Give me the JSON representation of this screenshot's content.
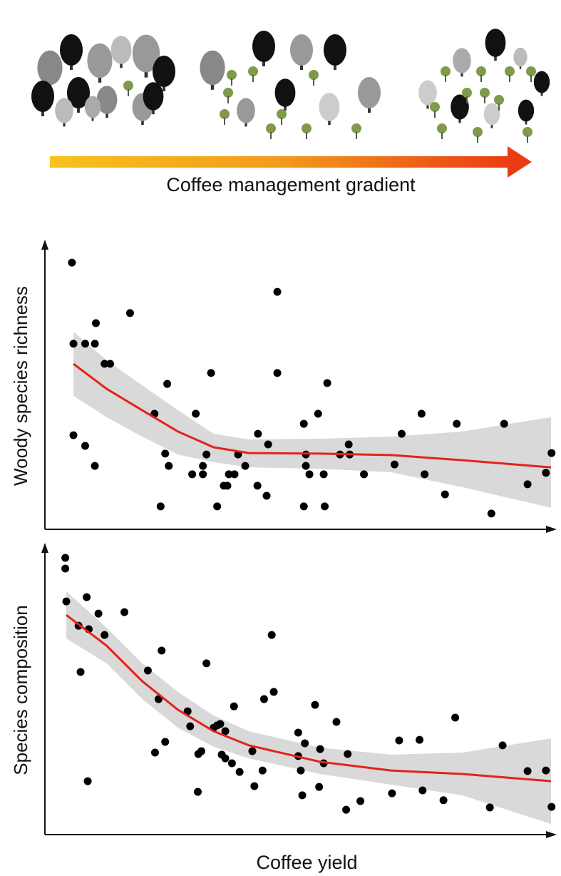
{
  "header": {
    "caption": "Coffee management gradient"
  },
  "chart_data": [
    {
      "type": "scatter",
      "ylabel": "Woody species richness",
      "xlim": [
        0,
        100
      ],
      "ylim": [
        0,
        100
      ],
      "series": [
        {
          "color": "#000000",
          "x": [
            5.3,
            5.6,
            7.9,
            9.8,
            10.0,
            11.7,
            12.8,
            16.7,
            5.6,
            7.9,
            9.8,
            21.5,
            24.0,
            23.6,
            24.3,
            22.7,
            29.6,
            32.6,
            28.9,
            31.0,
            31.0,
            31.7,
            33.8,
            35.1,
            35.8,
            36.1,
            37.2,
            37.9,
            39.3,
            41.7,
            41.8,
            43.5,
            43.8,
            45.6,
            45.6,
            50.8,
            50.8,
            51.2,
            51.2,
            51.9,
            53.6,
            54.7,
            54.9,
            55.4,
            57.9,
            59.6,
            59.8,
            62.6,
            68.6,
            70.0,
            73.9,
            74.5,
            78.5,
            80.8,
            87.6,
            90.1,
            94.7,
            98.3,
            99.4
          ],
          "values": [
            93.0,
            64.7,
            64.7,
            64.7,
            71.9,
            57.7,
            57.7,
            75.4,
            32.8,
            29.1,
            22.1,
            40.3,
            50.7,
            26.4,
            22.1,
            8.0,
            40.3,
            54.5,
            19.2,
            19.2,
            22.1,
            26.1,
            8.0,
            15.2,
            15.2,
            19.2,
            19.2,
            26.1,
            22.1,
            15.2,
            33.3,
            11.7,
            29.6,
            82.8,
            54.5,
            36.8,
            8.0,
            26.1,
            22.1,
            19.2,
            40.3,
            19.2,
            8.0,
            51.0,
            26.1,
            29.6,
            26.1,
            19.2,
            22.6,
            33.3,
            40.3,
            19.2,
            12.2,
            36.8,
            5.5,
            36.8,
            15.7,
            19.7,
            26.6
          ]
        }
      ],
      "fit": {
        "color": "#e2231a",
        "band_color": "#d9d9d9",
        "x": [
          5.6,
          12.1,
          19.1,
          26.1,
          33.1,
          40.0,
          54.0,
          67.9,
          81.9,
          99.3
        ],
        "values": [
          57.7,
          49.0,
          41.5,
          34.1,
          28.6,
          26.6,
          26.4,
          25.9,
          24.1,
          21.6
        ],
        "upper": [
          68.9,
          59.0,
          50.2,
          41.5,
          33.3,
          31.3,
          31.6,
          32.3,
          34.1,
          39.1
        ],
        "lower": [
          46.5,
          39.1,
          32.3,
          26.1,
          23.4,
          21.6,
          21.1,
          19.9,
          14.7,
          7.5
        ]
      }
    },
    {
      "type": "scatter",
      "ylabel": "Species composition",
      "xlabel": "Coffee yield",
      "xlim": [
        0,
        100
      ],
      "ylim": [
        0,
        100
      ],
      "series": [
        {
          "color": "#000000",
          "x": [
            4.0,
            4.0,
            4.2,
            8.2,
            6.6,
            8.6,
            10.5,
            11.7,
            15.6,
            7.0,
            8.4,
            20.2,
            22.9,
            22.3,
            21.6,
            23.6,
            28.0,
            28.5,
            30.0,
            30.1,
            30.7,
            31.7,
            33.1,
            33.8,
            34.4,
            34.7,
            35.4,
            35.4,
            36.7,
            37.1,
            38.2,
            40.7,
            41.1,
            42.7,
            43.0,
            44.5,
            44.9,
            49.7,
            49.7,
            50.2,
            50.5,
            51.0,
            53.0,
            53.8,
            54.0,
            54.7,
            57.2,
            59.1,
            59.4,
            61.9,
            68.1,
            69.5,
            73.5,
            74.1,
            78.2,
            80.5,
            87.3,
            89.8,
            94.7,
            98.3,
            99.4
          ],
          "values": [
            95.8,
            92.1,
            80.7,
            82.2,
            72.3,
            71.1,
            76.5,
            69.1,
            77.0,
            56.3,
            18.5,
            56.8,
            63.7,
            46.9,
            28.4,
            32.1,
            42.7,
            37.5,
            14.8,
            27.9,
            28.9,
            59.3,
            37.0,
            37.8,
            38.3,
            27.7,
            26.4,
            35.8,
            24.7,
            44.4,
            21.7,
            28.9,
            16.8,
            22.2,
            46.9,
            69.1,
            49.4,
            35.3,
            27.2,
            22.2,
            13.6,
            31.6,
            44.9,
            16.5,
            29.6,
            24.7,
            39.0,
            8.6,
            27.9,
            11.6,
            14.3,
            32.6,
            32.8,
            15.3,
            11.9,
            40.5,
            9.4,
            30.9,
            22.0,
            22.2,
            9.6
          ]
        }
      ],
      "fit": {
        "color": "#e2231a",
        "band_color": "#d9d9d9",
        "x": [
          4.2,
          12.1,
          19.1,
          26.1,
          33.1,
          40.0,
          54.0,
          67.9,
          81.9,
          99.3
        ],
        "values": [
          76.0,
          65.4,
          53.1,
          43.2,
          35.8,
          30.9,
          25.2,
          22.2,
          21.0,
          18.5
        ],
        "upper": [
          84.2,
          71.6,
          59.3,
          49.4,
          41.2,
          35.8,
          30.1,
          27.7,
          28.4,
          33.3
        ],
        "lower": [
          67.9,
          59.3,
          46.9,
          37.0,
          30.4,
          26.4,
          21.0,
          17.3,
          13.6,
          3.7
        ]
      }
    }
  ]
}
